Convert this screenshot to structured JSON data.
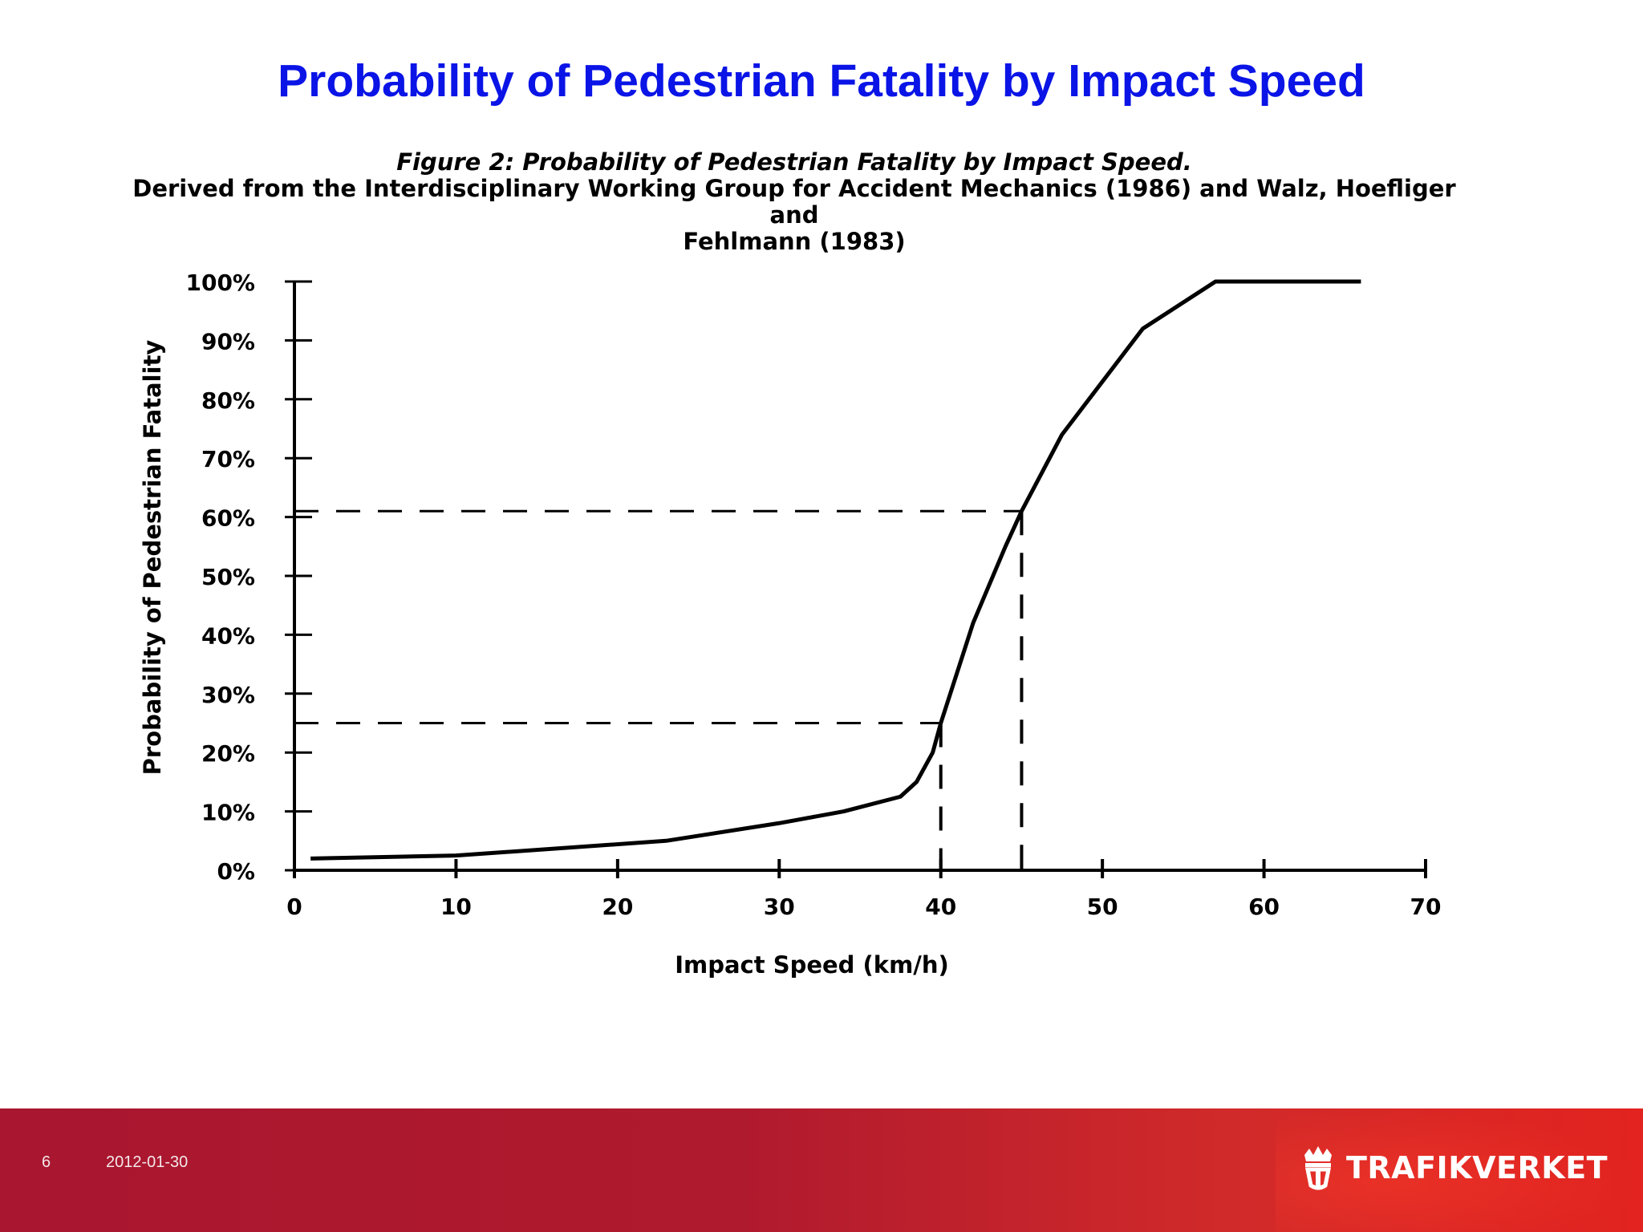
{
  "slide": {
    "title": "Probability of Pedestrian Fatality by Impact Speed"
  },
  "figure": {
    "caption_line1": "Figure 2: Probability of Pedestrian Fatality by Impact Speed.",
    "caption_line2": "Derived from the Interdisciplinary Working Group for Accident Mechanics (1986) and Walz, Hoefliger and",
    "caption_line3": "Fehlmann  (1983)"
  },
  "chart_data": {
    "type": "line",
    "title": "Figure 2: Probability of Pedestrian Fatality by Impact Speed.",
    "xlabel": "Impact Speed (km/h)",
    "ylabel": "Probability of Pedestrian Fatality",
    "xlim": [
      0,
      70
    ],
    "ylim": [
      0,
      100
    ],
    "x_ticks": [
      0,
      10,
      20,
      30,
      40,
      50,
      60,
      70
    ],
    "x_tick_labels": [
      "0",
      "10",
      "20",
      "30",
      "40",
      "50",
      "60",
      "70"
    ],
    "y_ticks": [
      0,
      10,
      20,
      30,
      40,
      50,
      60,
      70,
      80,
      90,
      100
    ],
    "y_tick_labels": [
      "0%",
      "10%",
      "20%",
      "30%",
      "40%",
      "50%",
      "60%",
      "70%",
      "80%",
      "90%",
      "100%"
    ],
    "grid": false,
    "series": [
      {
        "name": "Probability of Pedestrian Fatality",
        "x": [
          1,
          10,
          23,
          30,
          34,
          37.5,
          38.5,
          39.5,
          40,
          42,
          44,
          45,
          47.5,
          52.5,
          57,
          66
        ],
        "y": [
          2,
          2.5,
          5,
          8,
          10,
          12.5,
          15,
          20,
          25,
          42,
          55,
          61,
          74,
          92,
          100,
          100
        ]
      }
    ],
    "reference_lines": [
      {
        "speed": 40,
        "probability": 25
      },
      {
        "speed": 45,
        "probability": 61
      }
    ]
  },
  "footer": {
    "page_number": "6",
    "date": "2012-01-30",
    "logo_text": "TRAFIKVERKET"
  },
  "colors": {
    "title": "#0a14e6",
    "footer_red": "#c0182d",
    "ink": "#000000"
  }
}
